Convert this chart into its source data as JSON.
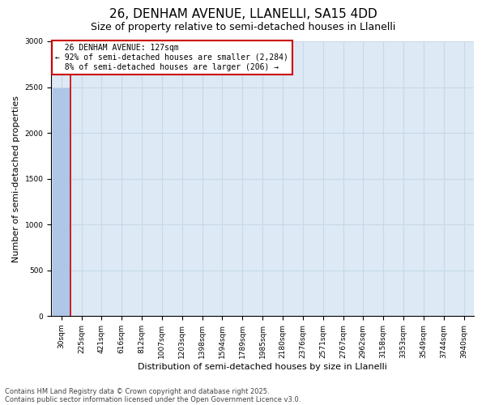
{
  "title1": "26, DENHAM AVENUE, LLANELLI, SA15 4DD",
  "title2": "Size of property relative to semi-detached houses in Llanelli",
  "xlabel": "Distribution of semi-detached houses by size in Llanelli",
  "ylabel": "Number of semi-detached properties",
  "property_label": "26 DENHAM AVENUE: 127sqm",
  "pct_smaller": 92,
  "n_smaller": 2284,
  "pct_larger": 8,
  "n_larger": 206,
  "categories": [
    "30sqm",
    "225sqm",
    "421sqm",
    "616sqm",
    "812sqm",
    "1007sqm",
    "1203sqm",
    "1398sqm",
    "1594sqm",
    "1789sqm",
    "1985sqm",
    "2180sqm",
    "2376sqm",
    "2571sqm",
    "2767sqm",
    "2962sqm",
    "3158sqm",
    "3353sqm",
    "3549sqm",
    "3744sqm",
    "3940sqm"
  ],
  "bar_values": [
    2490,
    0,
    0,
    0,
    0,
    0,
    0,
    0,
    0,
    0,
    0,
    0,
    0,
    0,
    0,
    0,
    0,
    0,
    0,
    0,
    0
  ],
  "bar_color": "#aec6e8",
  "grid_color": "#c8d8e8",
  "background_color": "#dde9f5",
  "annotation_box_color": "#cc0000",
  "vline_color": "#cc0000",
  "ylim": [
    0,
    3000
  ],
  "yticks": [
    0,
    500,
    1000,
    1500,
    2000,
    2500,
    3000
  ],
  "footer1": "Contains HM Land Registry data © Crown copyright and database right 2025.",
  "footer2": "Contains public sector information licensed under the Open Government Licence v3.0.",
  "title_fontsize": 11,
  "subtitle_fontsize": 9,
  "tick_fontsize": 6.5,
  "ylabel_fontsize": 8,
  "xlabel_fontsize": 8,
  "annot_fontsize": 7,
  "footer_fontsize": 6
}
